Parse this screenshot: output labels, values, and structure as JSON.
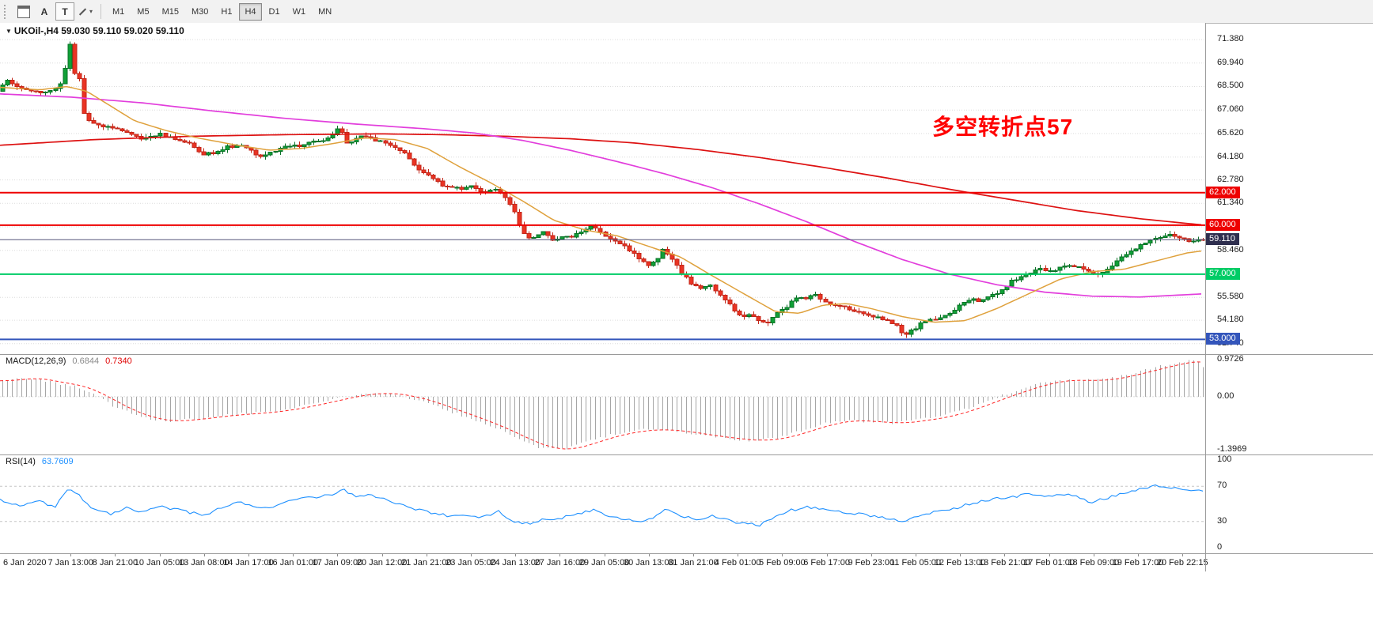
{
  "toolbar": {
    "button_a": "A",
    "button_t": "T",
    "timeframes": [
      "M1",
      "M5",
      "M15",
      "M30",
      "H1",
      "H4",
      "D1",
      "W1",
      "MN"
    ],
    "active_timeframe": "H4"
  },
  "chart": {
    "title": "UKOil-,H4 59.030 59.110 59.020 59.110",
    "symbol": "UKOil-",
    "period": "H4",
    "annotation": {
      "text": "多空转折点57",
      "color": "#FF0000"
    },
    "axis_labels": [
      {
        "text": "71.380",
        "p": 71.38
      },
      {
        "text": "69.940",
        "p": 69.94
      },
      {
        "text": "68.500",
        "p": 68.5
      },
      {
        "text": "67.060",
        "p": 67.06
      },
      {
        "text": "65.620",
        "p": 65.62
      },
      {
        "text": "64.180",
        "p": 64.18
      },
      {
        "text": "62.780",
        "p": 62.78
      },
      {
        "text": "61.340",
        "p": 61.34
      },
      {
        "text": "58.460",
        "p": 58.46
      },
      {
        "text": "55.580",
        "p": 55.58
      },
      {
        "text": "54.180",
        "p": 54.18
      },
      {
        "text": "52.740",
        "p": 52.74
      }
    ],
    "hlines": [
      {
        "label": "62.000",
        "price": 62.0,
        "color": "#EE0000"
      },
      {
        "label": "60.000",
        "price": 60.0,
        "color": "#EE0000"
      },
      {
        "label": "57.000",
        "price": 57.0,
        "color": "#00CC66"
      },
      {
        "label": "53.000",
        "price": 53.0,
        "color": "#3355BB"
      }
    ],
    "current_price": {
      "label": "59.110",
      "price": 59.11,
      "bg": "#2E2E4E"
    }
  },
  "macd": {
    "label": "MACD(12,26,9)",
    "value": "0.6844",
    "signal_value": "0.7340",
    "axis_labels": [
      {
        "text": "0.9726",
        "v": 0.9726
      },
      {
        "text": "0.00",
        "v": 0
      },
      {
        "text": "-1.3969",
        "v": -1.3969
      }
    ]
  },
  "rsi": {
    "label": "RSI(14)",
    "value": "63.7609",
    "axis_labels": [
      {
        "text": "100",
        "v": 100
      },
      {
        "text": "70",
        "v": 70
      },
      {
        "text": "30",
        "v": 30
      },
      {
        "text": "0",
        "v": 0
      }
    ]
  },
  "time_axis": {
    "labels": [
      "6 Jan 2020",
      "7 Jan 13:00",
      "8 Jan 21:00",
      "10 Jan 05:00",
      "13 Jan 08:00",
      "14 Jan 17:00",
      "16 Jan 01:00",
      "17 Jan 09:00",
      "20 Jan 12:00",
      "21 Jan 21:00",
      "23 Jan 05:00",
      "24 Jan 13:00",
      "27 Jan 16:00",
      "29 Jan 05:00",
      "30 Jan 13:00",
      "31 Jan 21:00",
      "4 Feb 01:00",
      "5 Feb 09:00",
      "6 Feb 17:00",
      "9 Feb 23:00",
      "11 Feb 05:00",
      "12 Feb 13:00",
      "13 Feb 21:00",
      "17 Feb 01:00",
      "18 Feb 09:00",
      "19 Feb 17:00",
      "20 Feb 22:15"
    ]
  },
  "colors": {
    "bull": "#0FA036",
    "bull_border": "#0A7227",
    "bear": "#EA3323",
    "bear_border": "#C3271A",
    "ma_slow": "#DD1111",
    "ma_mid": "#E23EDC",
    "ma_fast": "#DFA13C",
    "grid": "#DCDCDC",
    "price_line": "#55557A",
    "macd_hist": "#A6A6A6",
    "macd_signal": "#FF2222",
    "rsi_line": "#1E90FF",
    "rsi_level": "#C6C6C6"
  },
  "chart_data": {
    "type": "candlestick",
    "symbol": "UKOil-",
    "timeframe": "H4",
    "ohlc_current": {
      "open": 59.03,
      "high": 59.11,
      "low": 59.02,
      "close": 59.11
    },
    "candle_count": 252,
    "ylim": [
      52.1,
      72.4
    ],
    "hidden_grid": [
      59.9
    ],
    "hlines": [
      62.0,
      60.0,
      57.0,
      53.0
    ],
    "close_path": [
      [
        0,
        68.3
      ],
      [
        12,
        68.9
      ],
      [
        25,
        68.55
      ],
      [
        40,
        68.3
      ],
      [
        55,
        68.1
      ],
      [
        70,
        68.35
      ],
      [
        78,
        68.7
      ],
      [
        84,
        69.3
      ],
      [
        88,
        71.2
      ],
      [
        92,
        70.9
      ],
      [
        97,
        69.3
      ],
      [
        103,
        69.0
      ],
      [
        108,
        66.9
      ],
      [
        115,
        66.4
      ],
      [
        125,
        66.15
      ],
      [
        140,
        66.05
      ],
      [
        160,
        65.7
      ],
      [
        185,
        65.3
      ],
      [
        205,
        65.6
      ],
      [
        225,
        65.3
      ],
      [
        245,
        64.9
      ],
      [
        260,
        64.35
      ],
      [
        275,
        64.45
      ],
      [
        290,
        64.8
      ],
      [
        310,
        64.9
      ],
      [
        330,
        64.15
      ],
      [
        345,
        64.5
      ],
      [
        365,
        64.8
      ],
      [
        390,
        64.95
      ],
      [
        415,
        65.3
      ],
      [
        432,
        66.0
      ],
      [
        442,
        65.0
      ],
      [
        458,
        65.5
      ],
      [
        478,
        65.2
      ],
      [
        498,
        64.85
      ],
      [
        515,
        64.3
      ],
      [
        530,
        63.5
      ],
      [
        550,
        62.8
      ],
      [
        565,
        62.35
      ],
      [
        585,
        62.25
      ],
      [
        600,
        62.45
      ],
      [
        615,
        61.95
      ],
      [
        628,
        62.3
      ],
      [
        640,
        61.75
      ],
      [
        652,
        60.9
      ],
      [
        662,
        59.5
      ],
      [
        675,
        59.2
      ],
      [
        688,
        59.55
      ],
      [
        700,
        59.1
      ],
      [
        712,
        59.35
      ],
      [
        725,
        59.3
      ],
      [
        738,
        59.7
      ],
      [
        750,
        59.95
      ],
      [
        762,
        59.55
      ],
      [
        775,
        59.2
      ],
      [
        788,
        58.8
      ],
      [
        800,
        58.35
      ],
      [
        812,
        57.9
      ],
      [
        822,
        57.55
      ],
      [
        832,
        57.9
      ],
      [
        840,
        58.45
      ],
      [
        850,
        58.15
      ],
      [
        862,
        57.2
      ],
      [
        875,
        56.5
      ],
      [
        888,
        56.1
      ],
      [
        900,
        56.35
      ],
      [
        912,
        55.7
      ],
      [
        925,
        55.1
      ],
      [
        938,
        54.35
      ],
      [
        950,
        54.55
      ],
      [
        962,
        54.1
      ],
      [
        972,
        53.9
      ],
      [
        982,
        54.5
      ],
      [
        995,
        54.9
      ],
      [
        1008,
        55.5
      ],
      [
        1020,
        55.55
      ],
      [
        1032,
        55.8
      ],
      [
        1045,
        55.35
      ],
      [
        1060,
        55.05
      ],
      [
        1075,
        54.9
      ],
      [
        1090,
        54.65
      ],
      [
        1105,
        54.45
      ],
      [
        1120,
        54.2
      ],
      [
        1135,
        53.85
      ],
      [
        1145,
        53.35
      ],
      [
        1155,
        53.5
      ],
      [
        1165,
        53.9
      ],
      [
        1178,
        54.15
      ],
      [
        1192,
        54.3
      ],
      [
        1205,
        54.6
      ],
      [
        1218,
        55.15
      ],
      [
        1230,
        55.5
      ],
      [
        1242,
        55.3
      ],
      [
        1255,
        55.65
      ],
      [
        1268,
        56.0
      ],
      [
        1280,
        56.55
      ],
      [
        1292,
        56.8
      ],
      [
        1305,
        57.1
      ],
      [
        1318,
        57.3
      ],
      [
        1330,
        57.2
      ],
      [
        1342,
        57.4
      ],
      [
        1355,
        57.5
      ],
      [
        1368,
        57.55
      ],
      [
        1382,
        56.95
      ],
      [
        1395,
        57.1
      ],
      [
        1408,
        57.5
      ],
      [
        1420,
        58.0
      ],
      [
        1432,
        58.4
      ],
      [
        1445,
        58.75
      ],
      [
        1458,
        59.15
      ],
      [
        1470,
        59.25
      ],
      [
        1482,
        59.4
      ],
      [
        1495,
        59.2
      ],
      [
        1510,
        59.05
      ],
      [
        1523,
        59.11
      ]
    ],
    "ma_slow_path": [
      [
        0,
        64.9
      ],
      [
        120,
        65.25
      ],
      [
        240,
        65.45
      ],
      [
        360,
        65.55
      ],
      [
        480,
        65.6
      ],
      [
        560,
        65.55
      ],
      [
        640,
        65.45
      ],
      [
        720,
        65.3
      ],
      [
        800,
        65.05
      ],
      [
        880,
        64.65
      ],
      [
        960,
        64.15
      ],
      [
        1040,
        63.55
      ],
      [
        1120,
        62.9
      ],
      [
        1200,
        62.2
      ],
      [
        1280,
        61.55
      ],
      [
        1360,
        60.9
      ],
      [
        1440,
        60.4
      ],
      [
        1523,
        60.0
      ]
    ],
    "ma_mid_path": [
      [
        0,
        68.05
      ],
      [
        90,
        67.85
      ],
      [
        180,
        67.5
      ],
      [
        270,
        67.0
      ],
      [
        360,
        66.55
      ],
      [
        450,
        66.2
      ],
      [
        540,
        65.9
      ],
      [
        600,
        65.65
      ],
      [
        660,
        65.2
      ],
      [
        720,
        64.6
      ],
      [
        780,
        63.9
      ],
      [
        840,
        63.15
      ],
      [
        900,
        62.3
      ],
      [
        960,
        61.3
      ],
      [
        1020,
        60.2
      ],
      [
        1080,
        59.0
      ],
      [
        1140,
        57.9
      ],
      [
        1200,
        57.0
      ],
      [
        1260,
        56.35
      ],
      [
        1320,
        55.9
      ],
      [
        1380,
        55.65
      ],
      [
        1440,
        55.6
      ],
      [
        1523,
        55.8
      ]
    ],
    "ma_fast_path": [
      [
        0,
        68.45
      ],
      [
        50,
        68.3
      ],
      [
        85,
        68.5
      ],
      [
        110,
        68.2
      ],
      [
        140,
        67.3
      ],
      [
        170,
        66.4
      ],
      [
        210,
        65.8
      ],
      [
        250,
        65.35
      ],
      [
        300,
        64.9
      ],
      [
        340,
        64.6
      ],
      [
        380,
        64.7
      ],
      [
        420,
        65.0
      ],
      [
        460,
        65.35
      ],
      [
        500,
        65.25
      ],
      [
        540,
        64.7
      ],
      [
        580,
        63.6
      ],
      [
        620,
        62.6
      ],
      [
        660,
        61.5
      ],
      [
        700,
        60.3
      ],
      [
        740,
        59.7
      ],
      [
        780,
        59.35
      ],
      [
        820,
        58.7
      ],
      [
        860,
        58.05
      ],
      [
        900,
        56.9
      ],
      [
        940,
        55.8
      ],
      [
        980,
        54.7
      ],
      [
        1010,
        54.6
      ],
      [
        1040,
        55.1
      ],
      [
        1070,
        55.2
      ],
      [
        1100,
        54.9
      ],
      [
        1140,
        54.4
      ],
      [
        1180,
        54.05
      ],
      [
        1220,
        54.15
      ],
      [
        1260,
        54.9
      ],
      [
        1300,
        55.8
      ],
      [
        1340,
        56.7
      ],
      [
        1380,
        57.15
      ],
      [
        1420,
        57.3
      ],
      [
        1460,
        57.8
      ],
      [
        1500,
        58.3
      ],
      [
        1523,
        58.45
      ]
    ],
    "macd": {
      "main": 0.6844,
      "signal": 0.734,
      "ylim": [
        -1.52,
        1.12
      ],
      "path": [
        [
          0,
          0.42
        ],
        [
          30,
          0.5
        ],
        [
          60,
          0.38
        ],
        [
          90,
          0.28
        ],
        [
          115,
          0.05
        ],
        [
          145,
          -0.3
        ],
        [
          175,
          -0.55
        ],
        [
          205,
          -0.65
        ],
        [
          235,
          -0.6
        ],
        [
          265,
          -0.52
        ],
        [
          295,
          -0.46
        ],
        [
          325,
          -0.42
        ],
        [
          355,
          -0.34
        ],
        [
          385,
          -0.22
        ],
        [
          415,
          -0.08
        ],
        [
          445,
          0.05
        ],
        [
          475,
          0.1
        ],
        [
          505,
          0.02
        ],
        [
          535,
          -0.15
        ],
        [
          565,
          -0.38
        ],
        [
          595,
          -0.6
        ],
        [
          625,
          -0.85
        ],
        [
          655,
          -1.15
        ],
        [
          680,
          -1.35
        ],
        [
          705,
          -1.4
        ],
        [
          735,
          -1.22
        ],
        [
          765,
          -1.02
        ],
        [
          795,
          -0.9
        ],
        [
          825,
          -0.86
        ],
        [
          855,
          -0.92
        ],
        [
          885,
          -1.02
        ],
        [
          915,
          -1.1
        ],
        [
          945,
          -1.16
        ],
        [
          975,
          -1.1
        ],
        [
          1005,
          -0.92
        ],
        [
          1035,
          -0.72
        ],
        [
          1065,
          -0.62
        ],
        [
          1095,
          -0.66
        ],
        [
          1125,
          -0.7
        ],
        [
          1155,
          -0.62
        ],
        [
          1185,
          -0.52
        ],
        [
          1215,
          -0.34
        ],
        [
          1245,
          -0.1
        ],
        [
          1275,
          0.12
        ],
        [
          1305,
          0.32
        ],
        [
          1335,
          0.44
        ],
        [
          1365,
          0.42
        ],
        [
          1395,
          0.46
        ],
        [
          1425,
          0.6
        ],
        [
          1455,
          0.76
        ],
        [
          1480,
          0.88
        ],
        [
          1500,
          0.95
        ],
        [
          1512,
          0.9
        ],
        [
          1523,
          0.7
        ]
      ]
    },
    "rsi": {
      "value": 63.7609,
      "levels": [
        70,
        30
      ],
      "ylim": [
        -6,
        106
      ],
      "path": [
        [
          0,
          55
        ],
        [
          25,
          48
        ],
        [
          50,
          53
        ],
        [
          70,
          46
        ],
        [
          85,
          67
        ],
        [
          100,
          59
        ],
        [
          120,
          43
        ],
        [
          140,
          39
        ],
        [
          160,
          46
        ],
        [
          180,
          41
        ],
        [
          200,
          47
        ],
        [
          220,
          44
        ],
        [
          240,
          40
        ],
        [
          260,
          37
        ],
        [
          280,
          46
        ],
        [
          300,
          52
        ],
        [
          320,
          48
        ],
        [
          340,
          45
        ],
        [
          360,
          51
        ],
        [
          380,
          56
        ],
        [
          400,
          58
        ],
        [
          420,
          61
        ],
        [
          435,
          66
        ],
        [
          450,
          58
        ],
        [
          470,
          60
        ],
        [
          490,
          54
        ],
        [
          510,
          48
        ],
        [
          530,
          43
        ],
        [
          550,
          39
        ],
        [
          570,
          36
        ],
        [
          590,
          38
        ],
        [
          610,
          35
        ],
        [
          630,
          41
        ],
        [
          650,
          30
        ],
        [
          670,
          28
        ],
        [
          690,
          33
        ],
        [
          710,
          34
        ],
        [
          730,
          39
        ],
        [
          750,
          43
        ],
        [
          770,
          37
        ],
        [
          790,
          33
        ],
        [
          810,
          30
        ],
        [
          830,
          36
        ],
        [
          842,
          45
        ],
        [
          860,
          37
        ],
        [
          880,
          32
        ],
        [
          900,
          36
        ],
        [
          920,
          31
        ],
        [
          940,
          28
        ],
        [
          960,
          26
        ],
        [
          980,
          35
        ],
        [
          1000,
          43
        ],
        [
          1020,
          46
        ],
        [
          1040,
          44
        ],
        [
          1060,
          41
        ],
        [
          1080,
          39
        ],
        [
          1100,
          37
        ],
        [
          1120,
          34
        ],
        [
          1140,
          29
        ],
        [
          1160,
          37
        ],
        [
          1180,
          41
        ],
        [
          1200,
          43
        ],
        [
          1220,
          49
        ],
        [
          1240,
          53
        ],
        [
          1260,
          56
        ],
        [
          1280,
          58
        ],
        [
          1300,
          61
        ],
        [
          1320,
          58
        ],
        [
          1340,
          61
        ],
        [
          1360,
          58
        ],
        [
          1380,
          52
        ],
        [
          1400,
          57
        ],
        [
          1420,
          63
        ],
        [
          1440,
          67
        ],
        [
          1460,
          71
        ],
        [
          1480,
          68
        ],
        [
          1500,
          66
        ],
        [
          1523,
          64
        ]
      ]
    }
  }
}
